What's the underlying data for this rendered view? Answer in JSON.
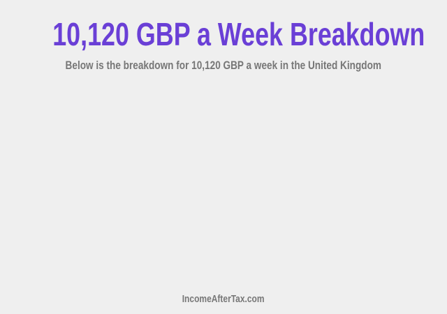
{
  "header": {
    "title": "10,120 GBP a Week Breakdown",
    "subtitle": "Below is the breakdown for 10,120 GBP a week in the United Kingdom"
  },
  "footer": {
    "site": "IncomeAfterTax.com"
  },
  "colors": {
    "title": "#6a3fd6",
    "text": "#777777",
    "background": "#efefef"
  }
}
